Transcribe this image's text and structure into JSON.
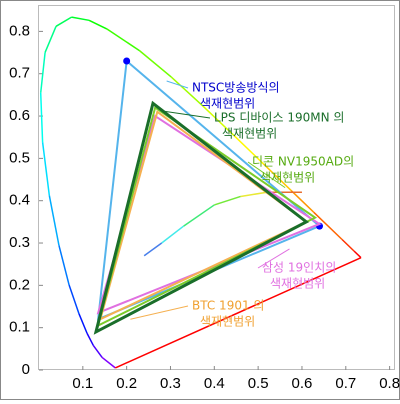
{
  "chart_data": {
    "type": "gamut",
    "xlim": [
      0,
      0.81
    ],
    "ylim": [
      0,
      0.86
    ],
    "xticks": [
      0.1,
      0.2,
      0.3,
      0.4,
      0.5,
      0.6,
      0.7,
      0.8
    ],
    "yticks": [
      0,
      0.1,
      0.2,
      0.3,
      0.4,
      0.5,
      0.6,
      0.7,
      0.8
    ],
    "locus": {
      "x": [
        0.1741,
        0.144,
        0.1241,
        0.1096,
        0.0913,
        0.0687,
        0.0454,
        0.0235,
        0.0082,
        0.0039,
        0.0139,
        0.0389,
        0.0743,
        0.1142,
        0.1547,
        0.2296,
        0.3016,
        0.3731,
        0.4441,
        0.5125,
        0.5752,
        0.627,
        0.6915,
        0.719,
        0.7347
      ],
      "y": [
        0.005,
        0.0297,
        0.0578,
        0.0868,
        0.1327,
        0.2007,
        0.295,
        0.4127,
        0.5384,
        0.6548,
        0.7502,
        0.812,
        0.8338,
        0.8262,
        0.8059,
        0.7543,
        0.6923,
        0.6245,
        0.5547,
        0.4866,
        0.4242,
        0.3725,
        0.3083,
        0.2809,
        0.2653
      ],
      "closing_color": "#ff0000"
    },
    "planck": {
      "x": [
        0.24,
        0.28,
        0.33,
        0.4,
        0.46,
        0.52,
        0.6
      ],
      "y": [
        0.27,
        0.3,
        0.34,
        0.39,
        0.41,
        0.42,
        0.42
      ]
    },
    "series": [
      {
        "name": [
          "NTSC방송방식의",
          "색재현범위"
        ],
        "color": "#55b4ec",
        "label_color": "#0000cc",
        "marker_color": "#0000ff",
        "x": [
          0.2,
          0.64,
          0.135
        ],
        "y": [
          0.73,
          0.34,
          0.12
        ]
      },
      {
        "name": [
          "삼성 19인치의",
          "색재현범위"
        ],
        "color": "#e070e0",
        "label_color": "#e070e0",
        "x": [
          0.265,
          0.64,
          0.135
        ],
        "y": [
          0.6,
          0.345,
          0.135
        ]
      },
      {
        "name": [
          "BTC 1901 의",
          "색재현범위"
        ],
        "color": "#f5b050",
        "label_color": "#f0a030",
        "x": [
          0.27,
          0.61,
          0.14
        ],
        "y": [
          0.61,
          0.35,
          0.12
        ]
      },
      {
        "name": [
          "디콘 NV1950AD의",
          "색재현범위"
        ],
        "color": "#7ccc2a",
        "label_color": "#55aa10",
        "x": [
          0.265,
          0.63,
          0.135
        ],
        "y": [
          0.62,
          0.36,
          0.105
        ]
      },
      {
        "name": [
          "LPS 디바이스 190MN 의",
          "색재현범위"
        ],
        "color": "#1a6e2a",
        "label_color": "#1a6e2a",
        "x": [
          0.26,
          0.61,
          0.13
        ],
        "y": [
          0.63,
          0.35,
          0.09
        ]
      }
    ]
  }
}
